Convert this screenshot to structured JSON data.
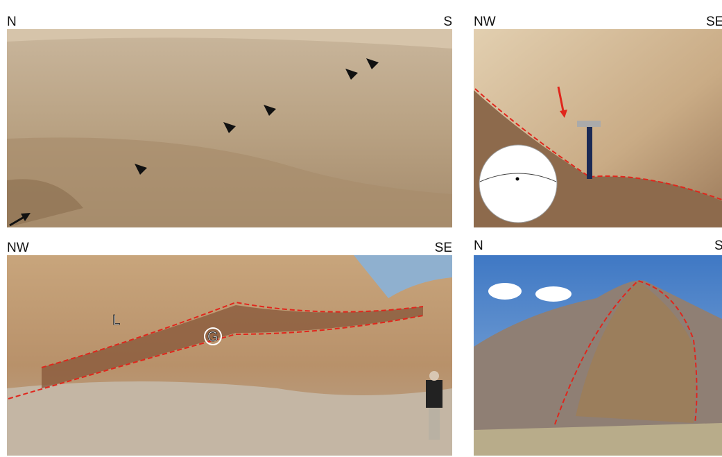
{
  "panels": [
    {
      "left_label": "N",
      "right_label": "S"
    },
    {
      "left_label": "NW",
      "right_label": "SE"
    },
    {
      "left_label": "NW",
      "right_label": "SE",
      "annotations": [
        "L",
        "G"
      ]
    },
    {
      "left_label": "N",
      "right_label": "S"
    }
  ]
}
